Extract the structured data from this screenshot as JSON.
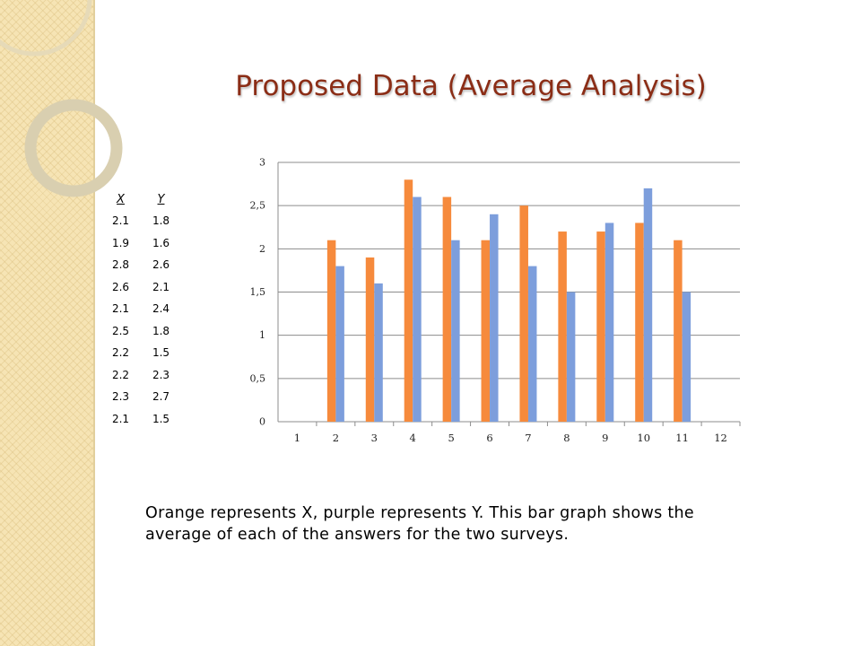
{
  "slide": {
    "title": "Proposed Data (Average Analysis)",
    "caption": "Orange represents X, purple represents Y. This bar graph shows the average of each of the answers for the two surveys."
  },
  "table": {
    "headers": [
      "X",
      "Y"
    ],
    "rows": [
      [
        "2.1",
        "1.8"
      ],
      [
        "1.9",
        "1.6"
      ],
      [
        "2.8",
        "2.6"
      ],
      [
        "2.6",
        "2.1"
      ],
      [
        "2.1",
        "2.4"
      ],
      [
        "2.5",
        "1.8"
      ],
      [
        "2.2",
        "1.5"
      ],
      [
        "2.2",
        "2.3"
      ],
      [
        "2.3",
        "2.7"
      ],
      [
        "2.1",
        "1.5"
      ]
    ]
  },
  "chart_data": {
    "type": "bar",
    "categories": [
      "1",
      "2",
      "3",
      "4",
      "5",
      "6",
      "7",
      "8",
      "9",
      "10",
      "11",
      "12"
    ],
    "series": [
      {
        "values": [
          null,
          2.1,
          1.9,
          2.8,
          2.6,
          2.1,
          2.5,
          2.2,
          2.2,
          2.3,
          2.1,
          null
        ],
        "color": "#f68a3c"
      },
      {
        "values": [
          null,
          1.8,
          1.6,
          2.6,
          2.1,
          2.4,
          1.8,
          1.5,
          2.3,
          2.7,
          1.5,
          null
        ],
        "color": "#7d9edc"
      }
    ],
    "ylim": [
      0,
      3
    ],
    "yticks": [
      0,
      0.5,
      1,
      1.5,
      2,
      2.5,
      3
    ],
    "ytick_labels": [
      "0",
      "0,5",
      "1",
      "1,5",
      "2",
      "2,5",
      "3"
    ],
    "grid": true,
    "legend": "none"
  },
  "colors": {
    "title": "#8b2d16",
    "side_strip": "#f6e4b4",
    "ring": "#dfcf9e"
  }
}
